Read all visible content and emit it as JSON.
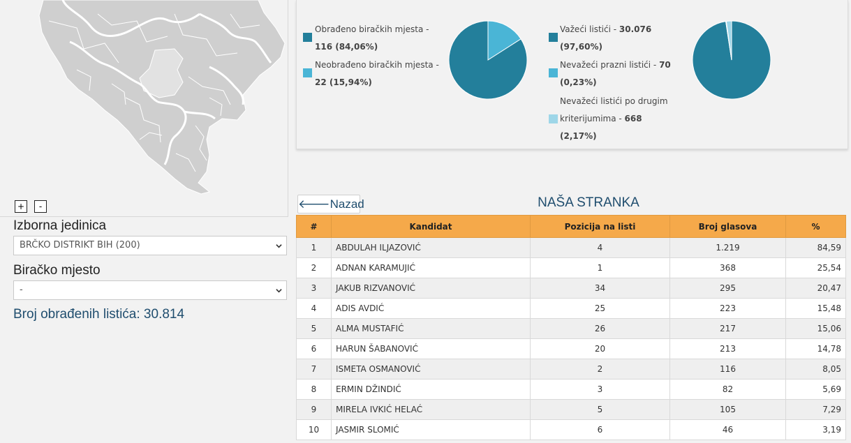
{
  "map": {
    "zoom_in_label": "+",
    "zoom_out_label": "-"
  },
  "filters": {
    "izborna_jedinica": {
      "label": "Izborna jedinica",
      "value": "BRČKO DISTRIKT BIH (200)"
    },
    "biracko_mjesto": {
      "label": "Biračko mjesto",
      "value": "-"
    }
  },
  "count": {
    "label": "Broj obrađenih listića: 30.814"
  },
  "stats": {
    "polling_stations": {
      "items": [
        {
          "line1": "Obrađeno biračkih mjesta -",
          "line2": "116 (84,06%)",
          "color": "#237f9b",
          "fraction": 0.8406
        },
        {
          "line1": "Neobrađeno biračkih mjesta -",
          "line2": "22 (15,94%)",
          "color": "#4ab5d6",
          "fraction": 0.1594
        }
      ]
    },
    "ballots": {
      "items": [
        {
          "pre": "Važeći listići - ",
          "num": "30.076",
          "line2": "(97,60%)",
          "color": "#237f9b",
          "fraction": 0.976
        },
        {
          "pre": "Nevažeći prazni listići - ",
          "num": "70",
          "line2": "(0,23%)",
          "color": "#4ab5d6",
          "fraction": 0.0023
        },
        {
          "line0": "Nevažeći listići po drugim",
          "pre": "kriterijumima - ",
          "num": "668",
          "line2": "(2,17%)",
          "color": "#9ed6e8",
          "fraction": 0.0217
        }
      ]
    }
  },
  "back_button": {
    "icon": "arrow-left-icon",
    "label": "Nazad"
  },
  "party_title": "NAŠA STRANKA",
  "table": {
    "headers": [
      "#",
      "Kandidat",
      "Pozicija na listi",
      "Broj glasova",
      "%"
    ],
    "rows": [
      [
        "1",
        "ABDULAH ILJAZOVIĆ",
        "4",
        "1.219",
        "84,59"
      ],
      [
        "2",
        "ADNAN KARAMUJIĆ",
        "1",
        "368",
        "25,54"
      ],
      [
        "3",
        "JAKUB RIZVANOVIĆ",
        "34",
        "295",
        "20,47"
      ],
      [
        "4",
        "ADIS AVDIĆ",
        "25",
        "223",
        "15,48"
      ],
      [
        "5",
        "ALMA MUSTAFIĆ",
        "26",
        "217",
        "15,06"
      ],
      [
        "6",
        "HARUN ŠABANOVIĆ",
        "20",
        "213",
        "14,78"
      ],
      [
        "7",
        "ISMETA OSMANOVIĆ",
        "2",
        "116",
        "8,05"
      ],
      [
        "8",
        "ERMIN DŽINDIĆ",
        "3",
        "82",
        "5,69"
      ],
      [
        "9",
        "MIRELA IVKIĆ HELAĆ",
        "5",
        "105",
        "7,29"
      ],
      [
        "10",
        "JASMIR SLOMIĆ",
        "6",
        "46",
        "3,19"
      ]
    ]
  }
}
